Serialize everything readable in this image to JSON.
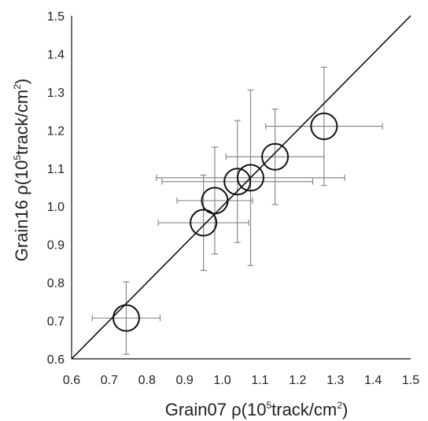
{
  "chart_data": {
    "type": "scatter",
    "title": "",
    "xlabel": {
      "pre": "Grain07 ρ(10",
      "sup1": "5",
      "mid": "track/cm",
      "sup2": "2",
      "post": ")"
    },
    "ylabel": {
      "pre": "Grain16 ρ(10",
      "sup1": "5",
      "mid": "track/cm",
      "sup2": "2",
      "post": ")"
    },
    "xlim": [
      0.6,
      1.5
    ],
    "ylim": [
      0.6,
      1.5
    ],
    "xticks": [
      "0.6",
      "0.7",
      "0.8",
      "0.9",
      "1.0",
      "1.1",
      "1.2",
      "1.3",
      "1.4",
      "1.5"
    ],
    "yticks": [
      "0.6",
      "0.7",
      "0.8",
      "0.9",
      "1.0",
      "1.1",
      "1.2",
      "1.3",
      "1.4",
      "1.5"
    ],
    "reference_line": {
      "label": "",
      "from": [
        0.6,
        0.6
      ],
      "to": [
        1.5,
        1.5
      ]
    },
    "grid": false,
    "legend": "none",
    "series": [
      {
        "points": [
          {
            "x": 0.745,
            "y": 0.707,
            "xerr": 0.09,
            "yerr": 0.095
          },
          {
            "x": 0.95,
            "y": 0.957,
            "xerr": 0.12,
            "yerr": 0.125
          },
          {
            "x": 0.98,
            "y": 1.015,
            "xerr": 0.1,
            "yerr": 0.14
          },
          {
            "x": 1.04,
            "y": 1.065,
            "xerr": 0.2,
            "yerr": 0.16
          },
          {
            "x": 1.075,
            "y": 1.075,
            "xerr": 0.25,
            "yerr": 0.23
          },
          {
            "x": 1.14,
            "y": 1.13,
            "xerr": 0.13,
            "yerr": 0.125
          },
          {
            "x": 1.27,
            "y": 1.21,
            "xerr": 0.155,
            "yerr": 0.155
          }
        ]
      }
    ]
  },
  "colors": {
    "marker": "#111111",
    "errorbar": "#8a8a8a",
    "axis": "#111111",
    "reference_line": "#111111"
  }
}
